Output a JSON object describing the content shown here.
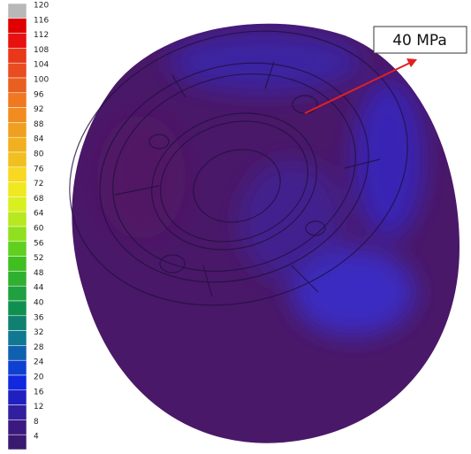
{
  "legend": {
    "labels": [
      120,
      116,
      112,
      108,
      104,
      100,
      96,
      92,
      88,
      84,
      80,
      76,
      72,
      68,
      64,
      60,
      56,
      52,
      48,
      44,
      40,
      36,
      32,
      28,
      24,
      20,
      16,
      12,
      8,
      4
    ],
    "colors": [
      "#b8b8b8",
      "#e00000",
      "#e81010",
      "#e83818",
      "#e84c20",
      "#e86020",
      "#f07820",
      "#f08c20",
      "#f0a020",
      "#f0b020",
      "#f0c020",
      "#f8d820",
      "#f0e820",
      "#d8f020",
      "#b8e820",
      "#90e020",
      "#60d020",
      "#40c020",
      "#30b030",
      "#20a040",
      "#109050",
      "#108070",
      "#107890",
      "#1060b0",
      "#1040d0",
      "#1028e0",
      "#2020c0",
      "#3020a0",
      "#3a1a80",
      "#3a1a70"
    ]
  },
  "annotation": "40 MPa"
}
